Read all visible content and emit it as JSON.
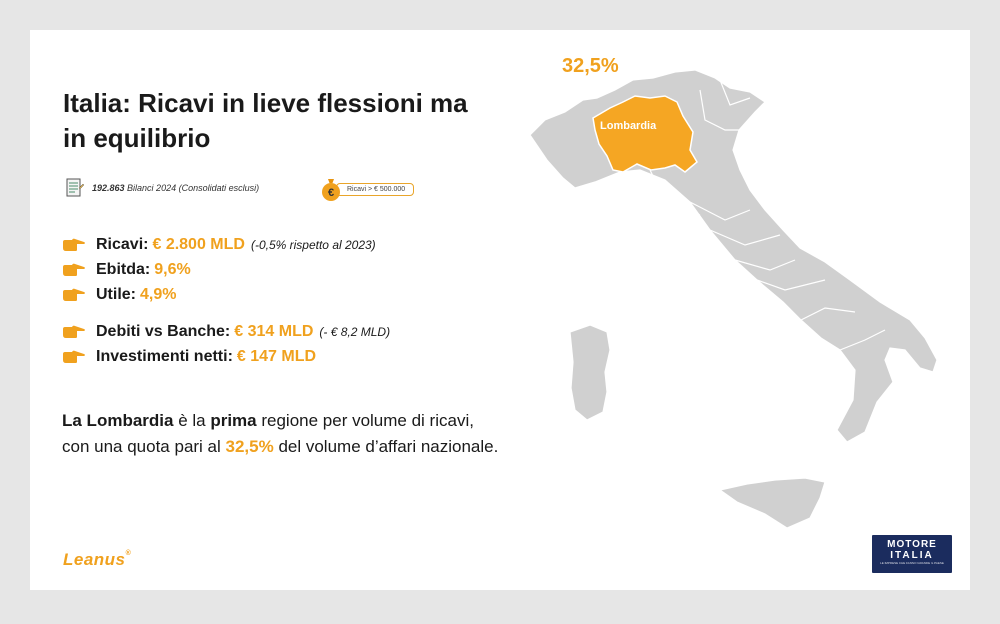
{
  "title": "Italia: Ricavi in lieve flessioni ma in equilibrio",
  "meta": {
    "count": "192.863",
    "count_text": " Bilanci 2024 (Consolidati esclusi)",
    "filter": "Ricavi > € 500.000"
  },
  "kpis": [
    {
      "label": "Ricavi:",
      "value": "€ 2.800 MLD",
      "note": "(-0,5% rispetto al 2023)"
    },
    {
      "label": "Ebitda:",
      "value": "9,6%",
      "note": ""
    },
    {
      "label": "Utile:",
      "value": "4,9%",
      "note": ""
    },
    {
      "label": "Debiti vs Banche:",
      "value": "€ 314 MLD",
      "note": "(- € 8,2 MLD)"
    },
    {
      "label": "Investimenti netti:",
      "value": "€ 147 MLD",
      "note": ""
    }
  ],
  "paragraph": {
    "p1": "La Lombardia",
    "p2": " è la ",
    "p3": "prima",
    "p4": " regione per volume di ricavi, con una quota pari al ",
    "p5": "32,5%",
    "p6": " del volume d’affari nazionale."
  },
  "map": {
    "region": "Lombardia",
    "share": "32,5%",
    "highlight_color": "#f5a623",
    "base_color": "#d0d0d0"
  },
  "footer": {
    "logo": "Leanus",
    "brand_line1": "MOTORE",
    "brand_line2": "ITALIA",
    "brand_line3": "LE IMPRESE CHE FANNO GRANDE IL PAESE"
  },
  "colors": {
    "accent": "#f0a11e",
    "text": "#1a1a1a",
    "background": "#e6e6e6"
  }
}
